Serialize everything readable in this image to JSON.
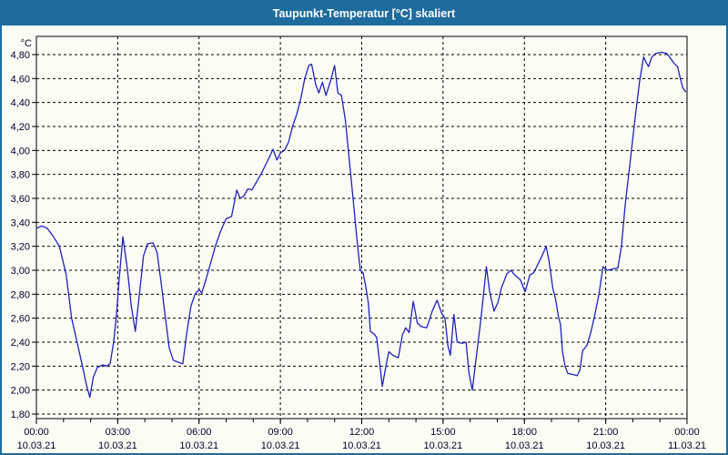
{
  "window": {
    "title": "Taupunkt-Temperatur [°C] skaliert",
    "title_bar_color": "#1e6b9e",
    "border_color": "#1e6b9e",
    "background_color": "#fbfdf5",
    "title_text_color": "#ffffff"
  },
  "chart_data": {
    "type": "line",
    "title": "Taupunkt-Temperatur [°C] skaliert",
    "ylabel": "°C",
    "xlabel": "",
    "ylim": [
      1.8,
      4.95
    ],
    "xlim_hours": [
      0,
      24
    ],
    "grid": "dashed-black-both-axes",
    "legend": "none",
    "axis_text_color": "#000028",
    "line_color": "#2020c0",
    "yticks": [
      {
        "value": 4.8,
        "label": "4,80"
      },
      {
        "value": 4.6,
        "label": "4,60"
      },
      {
        "value": 4.4,
        "label": "4,40"
      },
      {
        "value": 4.2,
        "label": "4,20"
      },
      {
        "value": 4.0,
        "label": "4,00"
      },
      {
        "value": 3.8,
        "label": "3,80"
      },
      {
        "value": 3.6,
        "label": "3,60"
      },
      {
        "value": 3.4,
        "label": "3,40"
      },
      {
        "value": 3.2,
        "label": "3,20"
      },
      {
        "value": 3.0,
        "label": "3,00"
      },
      {
        "value": 2.8,
        "label": "2,80"
      },
      {
        "value": 2.6,
        "label": "2,60"
      },
      {
        "value": 2.4,
        "label": "2,40"
      },
      {
        "value": 2.2,
        "label": "2,20"
      },
      {
        "value": 2.0,
        "label": "2,00"
      },
      {
        "value": 1.8,
        "label": "1,80"
      }
    ],
    "xticks": [
      {
        "hour": 0,
        "time": "00:00",
        "date": "10.03.21"
      },
      {
        "hour": 3,
        "time": "03:00",
        "date": "10.03.21"
      },
      {
        "hour": 6,
        "time": "06:00",
        "date": "10.03.21"
      },
      {
        "hour": 9,
        "time": "09:00",
        "date": "10.03.21"
      },
      {
        "hour": 12,
        "time": "12:00",
        "date": "10.03.21"
      },
      {
        "hour": 15,
        "time": "15:00",
        "date": "10.03.21"
      },
      {
        "hour": 18,
        "time": "18:00",
        "date": "10.03.21"
      },
      {
        "hour": 21,
        "time": "21:00",
        "date": "10.03.21"
      },
      {
        "hour": 24,
        "time": "00:00",
        "date": "11.03.21"
      }
    ],
    "minor_xtick_every_hours": 1,
    "series": [
      {
        "name": "Taupunkt-Temperatur",
        "color": "#2020c0",
        "points": [
          [
            0.0,
            3.35
          ],
          [
            0.2,
            3.37
          ],
          [
            0.4,
            3.35
          ],
          [
            0.6,
            3.29
          ],
          [
            0.85,
            3.2
          ],
          [
            1.1,
            2.96
          ],
          [
            1.3,
            2.6
          ],
          [
            1.5,
            2.4
          ],
          [
            1.7,
            2.2
          ],
          [
            1.85,
            2.04
          ],
          [
            1.97,
            1.94
          ],
          [
            2.1,
            2.11
          ],
          [
            2.25,
            2.19
          ],
          [
            2.45,
            2.21
          ],
          [
            2.6,
            2.2
          ],
          [
            2.72,
            2.22
          ],
          [
            2.85,
            2.4
          ],
          [
            2.95,
            2.62
          ],
          [
            3.05,
            2.92
          ],
          [
            3.19,
            3.28
          ],
          [
            3.35,
            3.02
          ],
          [
            3.5,
            2.7
          ],
          [
            3.65,
            2.49
          ],
          [
            3.8,
            2.8
          ],
          [
            3.95,
            3.12
          ],
          [
            4.1,
            3.22
          ],
          [
            4.3,
            3.23
          ],
          [
            4.45,
            3.15
          ],
          [
            4.6,
            2.9
          ],
          [
            4.75,
            2.62
          ],
          [
            4.9,
            2.35
          ],
          [
            5.05,
            2.25
          ],
          [
            5.25,
            2.23
          ],
          [
            5.4,
            2.22
          ],
          [
            5.55,
            2.48
          ],
          [
            5.7,
            2.7
          ],
          [
            5.85,
            2.8
          ],
          [
            6.0,
            2.84
          ],
          [
            6.1,
            2.81
          ],
          [
            6.25,
            2.92
          ],
          [
            6.45,
            3.08
          ],
          [
            6.6,
            3.2
          ],
          [
            6.8,
            3.33
          ],
          [
            7.0,
            3.43
          ],
          [
            7.1,
            3.44
          ],
          [
            7.2,
            3.45
          ],
          [
            7.39,
            3.67
          ],
          [
            7.52,
            3.6
          ],
          [
            7.65,
            3.62
          ],
          [
            7.8,
            3.68
          ],
          [
            7.95,
            3.67
          ],
          [
            8.1,
            3.73
          ],
          [
            8.3,
            3.81
          ],
          [
            8.5,
            3.9
          ],
          [
            8.73,
            4.01
          ],
          [
            8.87,
            3.92
          ],
          [
            9.0,
            3.98
          ],
          [
            9.15,
            4.0
          ],
          [
            9.3,
            4.07
          ],
          [
            9.45,
            4.2
          ],
          [
            9.6,
            4.3
          ],
          [
            9.75,
            4.43
          ],
          [
            9.9,
            4.6
          ],
          [
            10.05,
            4.71
          ],
          [
            10.15,
            4.72
          ],
          [
            10.3,
            4.55
          ],
          [
            10.42,
            4.48
          ],
          [
            10.55,
            4.57
          ],
          [
            10.68,
            4.46
          ],
          [
            10.85,
            4.58
          ],
          [
            11.0,
            4.71
          ],
          [
            11.12,
            4.48
          ],
          [
            11.25,
            4.46
          ],
          [
            11.4,
            4.25
          ],
          [
            11.55,
            3.9
          ],
          [
            11.7,
            3.55
          ],
          [
            11.85,
            3.2
          ],
          [
            11.95,
            3.0
          ],
          [
            12.05,
            2.98
          ],
          [
            12.15,
            2.86
          ],
          [
            12.25,
            2.72
          ],
          [
            12.32,
            2.49
          ],
          [
            12.45,
            2.47
          ],
          [
            12.55,
            2.44
          ],
          [
            12.65,
            2.25
          ],
          [
            12.76,
            2.03
          ],
          [
            12.9,
            2.21
          ],
          [
            13.0,
            2.32
          ],
          [
            13.15,
            2.29
          ],
          [
            13.35,
            2.27
          ],
          [
            13.5,
            2.46
          ],
          [
            13.62,
            2.52
          ],
          [
            13.75,
            2.48
          ],
          [
            13.9,
            2.74
          ],
          [
            14.05,
            2.56
          ],
          [
            14.2,
            2.53
          ],
          [
            14.4,
            2.52
          ],
          [
            14.6,
            2.66
          ],
          [
            14.78,
            2.75
          ],
          [
            14.95,
            2.64
          ],
          [
            15.07,
            2.6
          ],
          [
            15.18,
            2.37
          ],
          [
            15.27,
            2.29
          ],
          [
            15.4,
            2.63
          ],
          [
            15.52,
            2.4
          ],
          [
            15.7,
            2.39
          ],
          [
            15.85,
            2.4
          ],
          [
            15.95,
            2.15
          ],
          [
            16.08,
            2.0
          ],
          [
            16.25,
            2.32
          ],
          [
            16.4,
            2.6
          ],
          [
            16.6,
            3.03
          ],
          [
            16.72,
            2.82
          ],
          [
            16.88,
            2.66
          ],
          [
            17.02,
            2.73
          ],
          [
            17.15,
            2.85
          ],
          [
            17.35,
            2.97
          ],
          [
            17.5,
            3.0
          ],
          [
            17.65,
            2.96
          ],
          [
            17.85,
            2.92
          ],
          [
            18.03,
            2.82
          ],
          [
            18.2,
            2.96
          ],
          [
            18.35,
            2.98
          ],
          [
            18.5,
            3.05
          ],
          [
            18.65,
            3.12
          ],
          [
            18.8,
            3.2
          ],
          [
            18.9,
            3.09
          ],
          [
            19.05,
            2.85
          ],
          [
            19.15,
            2.76
          ],
          [
            19.25,
            2.62
          ],
          [
            19.33,
            2.55
          ],
          [
            19.4,
            2.33
          ],
          [
            19.5,
            2.2
          ],
          [
            19.6,
            2.14
          ],
          [
            19.8,
            2.13
          ],
          [
            19.95,
            2.12
          ],
          [
            20.05,
            2.17
          ],
          [
            20.15,
            2.33
          ],
          [
            20.3,
            2.37
          ],
          [
            20.45,
            2.48
          ],
          [
            20.6,
            2.63
          ],
          [
            20.75,
            2.8
          ],
          [
            20.9,
            3.03
          ],
          [
            21.05,
            3.0
          ],
          [
            21.25,
            3.01
          ],
          [
            21.45,
            3.02
          ],
          [
            21.58,
            3.2
          ],
          [
            21.72,
            3.55
          ],
          [
            21.85,
            3.8
          ],
          [
            21.95,
            4.0
          ],
          [
            22.1,
            4.3
          ],
          [
            22.25,
            4.58
          ],
          [
            22.4,
            4.78
          ],
          [
            22.5,
            4.73
          ],
          [
            22.58,
            4.7
          ],
          [
            22.7,
            4.78
          ],
          [
            22.85,
            4.81
          ],
          [
            23.05,
            4.82
          ],
          [
            23.25,
            4.81
          ],
          [
            23.42,
            4.76
          ],
          [
            23.55,
            4.72
          ],
          [
            23.65,
            4.7
          ],
          [
            23.75,
            4.6
          ],
          [
            23.85,
            4.52
          ],
          [
            23.95,
            4.49
          ]
        ]
      }
    ]
  }
}
